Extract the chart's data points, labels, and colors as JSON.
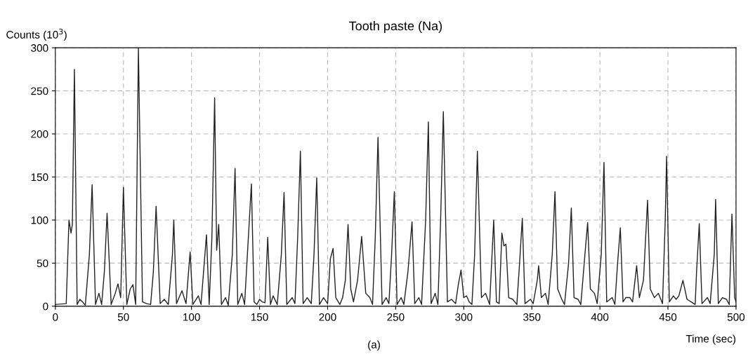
{
  "chart_data": {
    "type": "line",
    "title": "Tooth paste (Na)",
    "xlabel": "Time (sec)",
    "ylabel": "Counts (10$^{3}$)",
    "annotations": [
      "(a)"
    ],
    "series": [
      {
        "color": "#222222",
        "x": [
          0,
          8,
          10,
          11.5,
          12.5,
          14,
          16,
          18,
          20,
          22,
          25,
          27,
          29.5,
          32,
          34,
          36,
          38,
          41,
          44,
          46,
          48,
          50,
          52.5,
          55,
          57,
          59,
          61,
          64,
          67,
          70,
          72,
          74,
          77,
          80,
          83,
          86,
          87,
          89,
          93,
          96,
          99,
          101,
          105,
          107,
          111,
          113,
          115,
          117,
          118.5,
          120,
          122,
          125,
          127,
          130,
          132,
          134,
          137,
          139,
          144,
          146,
          148,
          150,
          152,
          154,
          156,
          158,
          160,
          163,
          166,
          168,
          170,
          174,
          176,
          178,
          180,
          182,
          185,
          188,
          190,
          192,
          194,
          197,
          200,
          202,
          204,
          206,
          209,
          211,
          213,
          215,
          217,
          219,
          222,
          225,
          228,
          231,
          233,
          235,
          237,
          240,
          243,
          245,
          247,
          249,
          251,
          254,
          256,
          259,
          262,
          264,
          267,
          269,
          272,
          274,
          276,
          279,
          281,
          283,
          285,
          288,
          291,
          294,
          296,
          298,
          300,
          302,
          304,
          306,
          308,
          310,
          313,
          316,
          319,
          322,
          324,
          326,
          328,
          329.5,
          331,
          333,
          336,
          339,
          341,
          343,
          345,
          349,
          351,
          354,
          355,
          357,
          360,
          362,
          365,
          367,
          369,
          372,
          374,
          377,
          379,
          381,
          384,
          386,
          389,
          391,
          393,
          396,
          398,
          401,
          403,
          405,
          409,
          411,
          413,
          415,
          417,
          419,
          422,
          424,
          427,
          429,
          432,
          435,
          437,
          440,
          443,
          446,
          448,
          449,
          451,
          454,
          456,
          458,
          461,
          464,
          468,
          470,
          471,
          473,
          475,
          479,
          481,
          484,
          485,
          487,
          490,
          493,
          495,
          497,
          499,
          500
        ],
        "values": [
          2,
          3,
          100,
          85,
          95,
          275,
          2,
          8,
          5,
          1,
          60,
          141,
          2,
          15,
          2,
          40,
          108,
          2,
          15,
          26,
          10,
          138,
          2,
          20,
          25,
          2,
          300,
          5,
          3,
          2,
          40,
          116,
          3,
          8,
          2,
          60,
          100,
          3,
          18,
          3,
          63,
          2,
          12,
          2,
          83,
          2,
          80,
          242,
          65,
          95,
          2,
          10,
          1,
          60,
          160,
          2,
          15,
          2,
          142,
          5,
          2,
          8,
          5,
          4,
          80,
          2,
          12,
          2,
          60,
          132,
          2,
          10,
          3,
          80,
          180,
          3,
          10,
          3,
          60,
          149,
          2,
          10,
          3,
          55,
          67,
          10,
          2,
          10,
          30,
          95,
          20,
          5,
          30,
          81,
          15,
          10,
          2,
          80,
          196,
          2,
          10,
          3,
          60,
          133,
          2,
          10,
          2,
          40,
          98,
          3,
          10,
          2,
          100,
          214,
          3,
          15,
          2,
          100,
          226,
          5,
          8,
          3,
          25,
          42,
          10,
          12,
          5,
          2,
          60,
          180,
          10,
          15,
          2,
          100,
          5,
          3,
          85,
          70,
          72,
          10,
          8,
          2,
          50,
          102,
          3,
          8,
          3,
          30,
          47,
          10,
          15,
          2,
          60,
          133,
          20,
          8,
          2,
          50,
          114,
          10,
          8,
          2,
          60,
          97,
          20,
          15,
          3,
          60,
          167,
          5,
          10,
          2,
          50,
          91,
          5,
          10,
          10,
          5,
          47,
          10,
          30,
          123,
          20,
          10,
          15,
          3,
          100,
          174,
          5,
          12,
          8,
          12,
          30,
          8,
          4,
          2,
          40,
          96,
          3,
          10,
          3,
          60,
          124,
          3,
          10,
          8,
          2,
          107,
          10,
          5
        ]
      }
    ],
    "xlim": [
      0,
      500
    ],
    "xticks": [
      0,
      50,
      100,
      150,
      200,
      250,
      300,
      350,
      400,
      450,
      500
    ],
    "ylim": [
      0,
      300
    ],
    "yticks": [
      0,
      50,
      100,
      150,
      200,
      250,
      300
    ],
    "grid": true,
    "legend": false,
    "marker": "none",
    "line_style": "solid"
  }
}
